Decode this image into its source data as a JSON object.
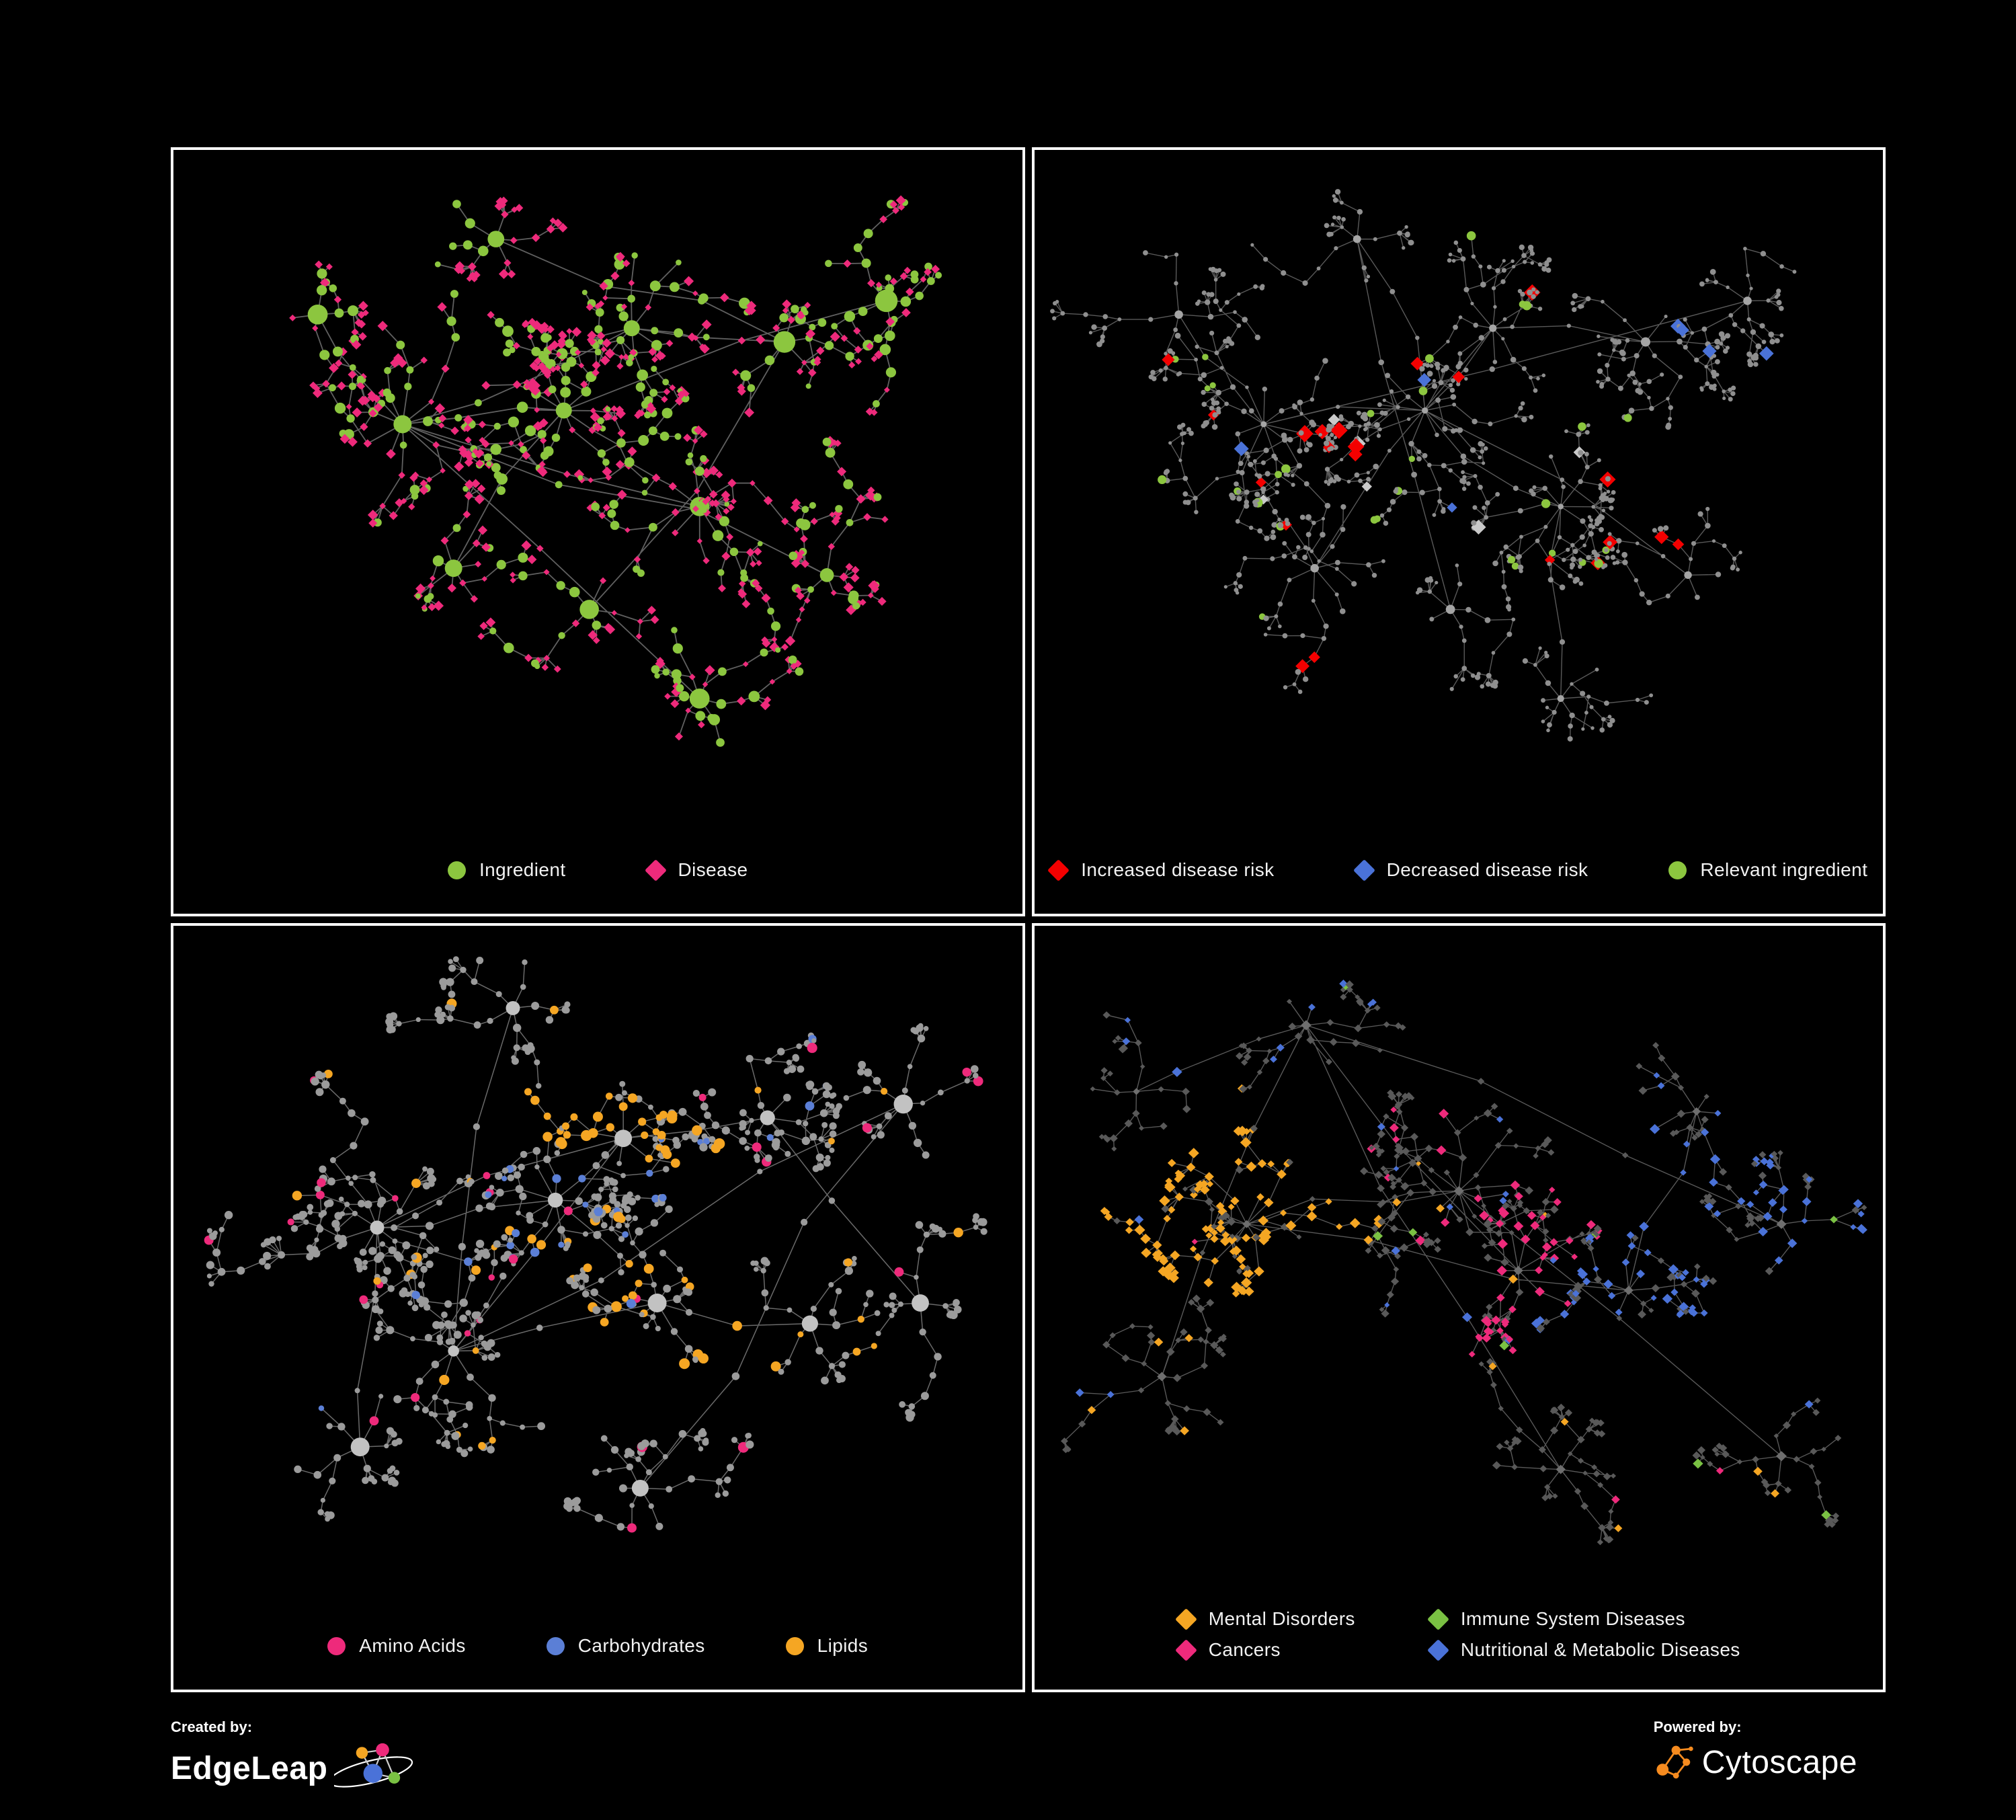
{
  "page": {
    "background": "#000000",
    "panel_border": "#ffffff"
  },
  "panels": [
    {
      "id": "ingredient-disease",
      "legend": [
        {
          "label": "Ingredient",
          "shape": "circle",
          "color": "#8cc63f"
        },
        {
          "label": "Disease",
          "shape": "diamond",
          "color": "#ee2a7b"
        }
      ],
      "network": {
        "seed": 11,
        "edge": {
          "color": "#6a6a6a",
          "width": 1.8,
          "opacity": 0.9
        },
        "base": {
          "shape": "circle",
          "color": "#8cc63f",
          "r": 5.5
        },
        "rules": [
          {
            "when": "hub",
            "shape": "circle",
            "color": "#8cc63f",
            "r": 13
          },
          {
            "when": "leaf",
            "prob": 0.78,
            "shape": "diamond",
            "color": "#ee2a7b",
            "r": 6
          },
          {
            "when": "leaf",
            "shape": "circle",
            "color": "#8cc63f",
            "r": 5
          },
          {
            "when": "internal",
            "prob": 0.5,
            "shape": "circle",
            "color": "#8cc63f",
            "r": 6.5
          },
          {
            "when": "internal",
            "shape": "diamond",
            "color": "#ee2a7b",
            "r": 5.5
          }
        ],
        "clusters": [
          [
            0.46,
            0.38,
            10,
            42,
            3
          ],
          [
            0.27,
            0.4,
            9,
            44,
            3
          ],
          [
            0.54,
            0.26,
            8,
            38,
            2
          ],
          [
            0.62,
            0.52,
            8,
            40,
            2
          ],
          [
            0.33,
            0.61,
            7,
            40,
            2
          ],
          [
            0.72,
            0.28,
            6,
            38,
            2
          ],
          [
            0.84,
            0.22,
            5,
            34,
            1
          ],
          [
            0.62,
            0.8,
            6,
            36,
            1
          ],
          [
            0.38,
            0.13,
            5,
            34,
            1
          ],
          [
            0.77,
            0.62,
            5,
            36,
            1
          ],
          [
            0.17,
            0.24,
            4,
            36,
            1
          ],
          [
            0.49,
            0.67,
            5,
            36,
            1
          ]
        ]
      }
    },
    {
      "id": "disease-risk",
      "legend": [
        {
          "label": "Increased disease risk",
          "shape": "diamond",
          "color": "#f40000"
        },
        {
          "label": "Decreased disease risk",
          "shape": "diamond",
          "color": "#4a72d8"
        },
        {
          "label": "Relevant ingredient",
          "shape": "circle",
          "color": "#8cc63f"
        }
      ],
      "network": {
        "seed": 23,
        "edge": {
          "color": "#6f6f6f",
          "width": 1.4,
          "opacity": 0.8
        },
        "base": {
          "shape": "circle",
          "color": "#8f8f8f",
          "r": 3.4
        },
        "rules": [
          {
            "when": "hub",
            "shape": "circle",
            "color": "#a5a5a5",
            "r": 5.5
          },
          {
            "cluster": [
              0,
              1,
              2,
              3,
              4
            ],
            "prob": 0.06,
            "shape": "diamond",
            "color": "#f40000",
            "r": 10
          },
          {
            "cluster": [
              0,
              1,
              2,
              3,
              4,
              5
            ],
            "prob": 0.045,
            "shape": "circle",
            "color": "#8cc63f",
            "r": 5.5
          },
          {
            "cluster": [
              0,
              1
            ],
            "prob": 0.025,
            "shape": "diamond",
            "color": "#4a72d8",
            "r": 9
          },
          {
            "cluster": [
              0,
              1,
              3
            ],
            "prob": 0.02,
            "shape": "diamond",
            "color": "#c9c9c9",
            "r": 9
          },
          {
            "cluster": [
              7,
              9
            ],
            "prob": 0.03,
            "shape": "diamond",
            "color": "#f40000",
            "r": 9
          },
          {
            "cluster": [
              6
            ],
            "prob": 0.05,
            "shape": "diamond",
            "color": "#4a72d8",
            "r": 9
          }
        ],
        "clusters": [
          [
            0.46,
            0.38,
            10,
            42,
            3
          ],
          [
            0.27,
            0.4,
            9,
            44,
            3
          ],
          [
            0.54,
            0.26,
            8,
            38,
            2
          ],
          [
            0.62,
            0.52,
            8,
            40,
            2
          ],
          [
            0.33,
            0.61,
            7,
            40,
            2
          ],
          [
            0.72,
            0.28,
            6,
            38,
            2
          ],
          [
            0.84,
            0.22,
            5,
            34,
            1
          ],
          [
            0.62,
            0.8,
            6,
            36,
            1
          ],
          [
            0.38,
            0.13,
            5,
            34,
            1
          ],
          [
            0.77,
            0.62,
            5,
            36,
            1
          ],
          [
            0.17,
            0.24,
            4,
            36,
            1
          ],
          [
            0.49,
            0.67,
            5,
            36,
            1
          ]
        ]
      }
    },
    {
      "id": "macronutrients",
      "legend": [
        {
          "label": "Amino Acids",
          "shape": "circle",
          "color": "#ee2a7b"
        },
        {
          "label": "Carbohydrates",
          "shape": "circle",
          "color": "#5b7fd6"
        },
        {
          "label": "Lipids",
          "shape": "circle",
          "color": "#f5a623"
        }
      ],
      "network": {
        "seed": 37,
        "edge": {
          "color": "#7d7d7d",
          "width": 1.5,
          "opacity": 0.85
        },
        "base": {
          "shape": "circle",
          "color": "#9b9b9b",
          "r": 4.8
        },
        "rules": [
          {
            "when": "hub",
            "shape": "circle",
            "color": "#c2c2c2",
            "r": 11
          },
          {
            "cluster": [
              2
            ],
            "prob": 0.55,
            "shape": "circle",
            "color": "#f5a623",
            "r": 6.5
          },
          {
            "cluster": [
              4
            ],
            "prob": 0.35,
            "shape": "circle",
            "color": "#f5a623",
            "r": 6.5
          },
          {
            "cluster": [
              1
            ],
            "prob": 0.12,
            "shape": "circle",
            "color": "#5b7fd6",
            "r": 5.5
          },
          {
            "prob": 0.05,
            "shape": "circle",
            "color": "#f5a623",
            "r": 6
          },
          {
            "prob": 0.045,
            "shape": "circle",
            "color": "#ee2a7b",
            "r": 6.2
          },
          {
            "prob": 0.012,
            "shape": "circle",
            "color": "#5b7fd6",
            "r": 5.5
          }
        ],
        "clusters": [
          [
            0.24,
            0.44,
            9,
            44,
            3
          ],
          [
            0.45,
            0.4,
            9,
            42,
            3
          ],
          [
            0.53,
            0.31,
            8,
            38,
            2
          ],
          [
            0.33,
            0.62,
            7,
            40,
            2
          ],
          [
            0.57,
            0.55,
            7,
            38,
            2
          ],
          [
            0.7,
            0.28,
            6,
            38,
            2
          ],
          [
            0.86,
            0.26,
            5,
            34,
            1
          ],
          [
            0.55,
            0.82,
            6,
            36,
            1
          ],
          [
            0.22,
            0.76,
            5,
            36,
            1
          ],
          [
            0.75,
            0.58,
            5,
            36,
            1
          ],
          [
            0.4,
            0.12,
            5,
            34,
            1
          ],
          [
            0.88,
            0.55,
            4,
            34,
            1
          ]
        ]
      }
    },
    {
      "id": "disease-categories",
      "legend": [
        {
          "label": "Mental Disorders",
          "shape": "diamond",
          "color": "#f5a623"
        },
        {
          "label": "Immune System Diseases",
          "shape": "diamond",
          "color": "#7ac143"
        },
        {
          "label": "Cancers",
          "shape": "diamond",
          "color": "#ee2a7b"
        },
        {
          "label": "Nutritional & Metabolic Diseases",
          "shape": "diamond",
          "color": "#4a72d8"
        }
      ],
      "network": {
        "seed": 53,
        "edge": {
          "color": "#6f6f6f",
          "width": 1.4,
          "opacity": 0.8
        },
        "base": {
          "shape": "diamond",
          "color": "#595959",
          "r": 5
        },
        "rules": [
          {
            "when": "hub",
            "shape": "diamond",
            "color": "#6e6e6e",
            "r": 7
          },
          {
            "cluster": [
              0
            ],
            "prob": 0.75,
            "shape": "diamond",
            "color": "#f5a623",
            "r": 6.5
          },
          {
            "cluster": [
              2
            ],
            "prob": 0.5,
            "shape": "diamond",
            "color": "#ee2a7b",
            "r": 6
          },
          {
            "cluster": [
              1
            ],
            "prob": 0.12,
            "shape": "diamond",
            "color": "#ee2a7b",
            "r": 6
          },
          {
            "cluster": [
              3
            ],
            "prob": 0.55,
            "shape": "diamond",
            "color": "#4a72d8",
            "r": 6
          },
          {
            "cluster": [
              4
            ],
            "prob": 0.3,
            "shape": "diamond",
            "color": "#4a72d8",
            "r": 6
          },
          {
            "cluster": [
              7
            ],
            "prob": 0.4,
            "shape": "diamond",
            "color": "#4a72d8",
            "r": 6
          },
          {
            "cluster": [
              5
            ],
            "prob": 0.25,
            "shape": "diamond",
            "color": "#4a72d8",
            "r": 6
          },
          {
            "prob": 0.035,
            "shape": "diamond",
            "color": "#4a72d8",
            "r": 5.5
          },
          {
            "prob": 0.025,
            "shape": "diamond",
            "color": "#f5a623",
            "r": 5.5
          },
          {
            "prob": 0.018,
            "shape": "diamond",
            "color": "#7ac143",
            "r": 6
          },
          {
            "prob": 0.018,
            "shape": "diamond",
            "color": "#ee2a7b",
            "r": 5.5
          }
        ],
        "clusters": [
          [
            0.25,
            0.45,
            10,
            42,
            3
          ],
          [
            0.5,
            0.4,
            10,
            42,
            3
          ],
          [
            0.57,
            0.52,
            8,
            38,
            2
          ],
          [
            0.7,
            0.55,
            7,
            36,
            2
          ],
          [
            0.78,
            0.28,
            6,
            38,
            2
          ],
          [
            0.32,
            0.15,
            6,
            36,
            2
          ],
          [
            0.62,
            0.82,
            6,
            36,
            1
          ],
          [
            0.88,
            0.45,
            5,
            34,
            1
          ],
          [
            0.15,
            0.68,
            5,
            36,
            1
          ],
          [
            0.88,
            0.8,
            4,
            32,
            1
          ],
          [
            0.12,
            0.25,
            4,
            34,
            1
          ]
        ]
      }
    }
  ],
  "footer": {
    "created_by": {
      "label": "Created by:",
      "brand": "EdgeLeap"
    },
    "powered_by": {
      "label": "Powered by:",
      "brand": "Cytoscape"
    }
  },
  "logo_colors": {
    "edgeleap": [
      "#f5a623",
      "#ee2a7b",
      "#4a72d8",
      "#7ac143"
    ],
    "cytoscape": "#f68b1f"
  }
}
